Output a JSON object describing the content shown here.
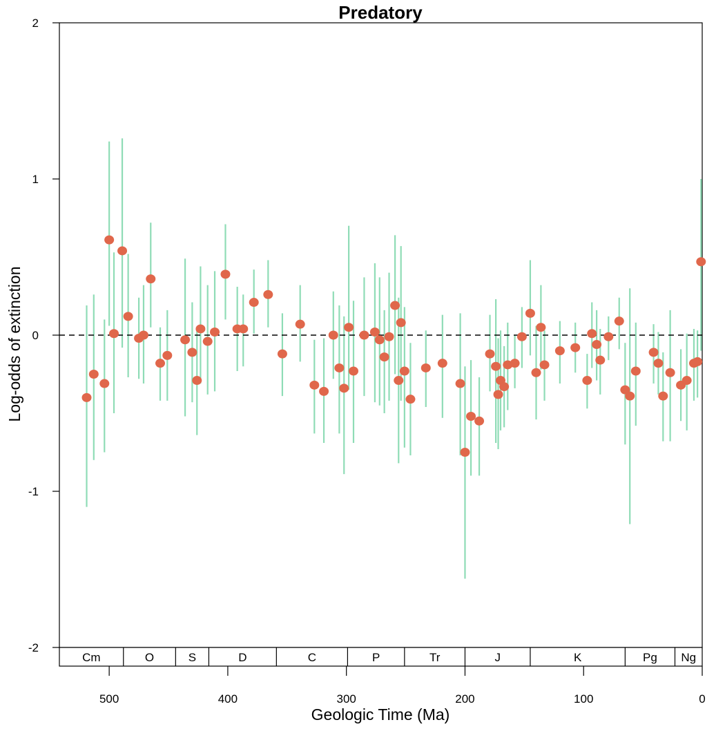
{
  "colors": {
    "point": "#e0674b",
    "errorbar": "#8fdcb6",
    "axis": "#000000",
    "zero_line": "#000000"
  },
  "chart_data": {
    "type": "scatter",
    "title": "Predatory",
    "xlabel": "Geologic Time (Ma)",
    "ylabel": "Log-odds of extinction",
    "xlim": [
      542,
      0
    ],
    "ylim": [
      -2,
      2
    ],
    "x_reversed": true,
    "x_ticks": [
      500,
      400,
      300,
      200,
      100,
      0
    ],
    "y_ticks": [
      -2,
      -1,
      0,
      1,
      2
    ],
    "reference_line": {
      "y": 0,
      "style": "dashed"
    },
    "periods": [
      {
        "label": "Cm",
        "start": 542,
        "end": 488
      },
      {
        "label": "O",
        "start": 488,
        "end": 444
      },
      {
        "label": "S",
        "start": 444,
        "end": 416
      },
      {
        "label": "D",
        "start": 416,
        "end": 359
      },
      {
        "label": "C",
        "start": 359,
        "end": 299
      },
      {
        "label": "P",
        "start": 299,
        "end": 251
      },
      {
        "label": "Tr",
        "start": 251,
        "end": 200
      },
      {
        "label": "J",
        "start": 200,
        "end": 145
      },
      {
        "label": "K",
        "start": 145,
        "end": 65
      },
      {
        "label": "Pg",
        "start": 65,
        "end": 23
      },
      {
        "label": "Ng",
        "start": 23,
        "end": 0
      }
    ],
    "points": [
      {
        "x": 519,
        "y": -0.4,
        "lo": -1.1,
        "hi": 0.19
      },
      {
        "x": 513,
        "y": -0.25,
        "lo": -0.8,
        "hi": 0.26
      },
      {
        "x": 504,
        "y": -0.31,
        "lo": -0.75,
        "hi": 0.1
      },
      {
        "x": 500,
        "y": 0.61,
        "lo": 0.06,
        "hi": 1.24
      },
      {
        "x": 496,
        "y": 0.01,
        "lo": -0.5,
        "hi": 0.53
      },
      {
        "x": 489,
        "y": 0.54,
        "lo": -0.08,
        "hi": 1.26
      },
      {
        "x": 484,
        "y": 0.12,
        "lo": -0.27,
        "hi": 0.52
      },
      {
        "x": 475,
        "y": -0.02,
        "lo": -0.28,
        "hi": 0.24
      },
      {
        "x": 471,
        "y": 0.0,
        "lo": -0.31,
        "hi": 0.32
      },
      {
        "x": 465,
        "y": 0.36,
        "lo": 0.05,
        "hi": 0.72
      },
      {
        "x": 457,
        "y": -0.18,
        "lo": -0.42,
        "hi": 0.05
      },
      {
        "x": 451,
        "y": -0.13,
        "lo": -0.42,
        "hi": 0.16
      },
      {
        "x": 436,
        "y": -0.03,
        "lo": -0.52,
        "hi": 0.49
      },
      {
        "x": 430,
        "y": -0.11,
        "lo": -0.43,
        "hi": 0.21
      },
      {
        "x": 426,
        "y": -0.29,
        "lo": -0.64,
        "hi": 0.04
      },
      {
        "x": 423,
        "y": 0.04,
        "lo": -0.31,
        "hi": 0.44
      },
      {
        "x": 417,
        "y": -0.04,
        "lo": -0.38,
        "hi": 0.32
      },
      {
        "x": 411,
        "y": 0.02,
        "lo": -0.36,
        "hi": 0.41
      },
      {
        "x": 402,
        "y": 0.39,
        "lo": 0.1,
        "hi": 0.71
      },
      {
        "x": 392,
        "y": 0.04,
        "lo": -0.23,
        "hi": 0.31
      },
      {
        "x": 387,
        "y": 0.04,
        "lo": -0.2,
        "hi": 0.26
      },
      {
        "x": 378,
        "y": 0.21,
        "lo": 0.01,
        "hi": 0.42
      },
      {
        "x": 366,
        "y": 0.26,
        "lo": 0.05,
        "hi": 0.48
      },
      {
        "x": 354,
        "y": -0.12,
        "lo": -0.39,
        "hi": 0.14
      },
      {
        "x": 339,
        "y": 0.07,
        "lo": -0.17,
        "hi": 0.32
      },
      {
        "x": 327,
        "y": -0.32,
        "lo": -0.63,
        "hi": -0.03
      },
      {
        "x": 319,
        "y": -0.36,
        "lo": -0.69,
        "hi": -0.02
      },
      {
        "x": 311,
        "y": 0.0,
        "lo": -0.28,
        "hi": 0.28
      },
      {
        "x": 306,
        "y": -0.21,
        "lo": -0.63,
        "hi": 0.19
      },
      {
        "x": 302,
        "y": -0.34,
        "lo": -0.89,
        "hi": 0.12
      },
      {
        "x": 298,
        "y": 0.05,
        "lo": -0.35,
        "hi": 0.7
      },
      {
        "x": 294,
        "y": -0.23,
        "lo": -0.69,
        "hi": 0.22
      },
      {
        "x": 285,
        "y": 0.0,
        "lo": -0.39,
        "hi": 0.37
      },
      {
        "x": 276,
        "y": 0.02,
        "lo": -0.43,
        "hi": 0.46
      },
      {
        "x": 272,
        "y": -0.03,
        "lo": -0.45,
        "hi": 0.37
      },
      {
        "x": 268,
        "y": -0.14,
        "lo": -0.5,
        "hi": 0.16
      },
      {
        "x": 264,
        "y": -0.01,
        "lo": -0.42,
        "hi": 0.4
      },
      {
        "x": 259,
        "y": 0.19,
        "lo": -0.25,
        "hi": 0.64
      },
      {
        "x": 256,
        "y": -0.29,
        "lo": -0.82,
        "hi": 0.24
      },
      {
        "x": 254,
        "y": 0.08,
        "lo": -0.42,
        "hi": 0.57
      },
      {
        "x": 251,
        "y": -0.23,
        "lo": -0.72,
        "hi": 0.18
      },
      {
        "x": 246,
        "y": -0.41,
        "lo": -0.77,
        "hi": -0.05
      },
      {
        "x": 233,
        "y": -0.21,
        "lo": -0.46,
        "hi": 0.03
      },
      {
        "x": 219,
        "y": -0.18,
        "lo": -0.53,
        "hi": 0.13
      },
      {
        "x": 204,
        "y": -0.31,
        "lo": -0.77,
        "hi": 0.14
      },
      {
        "x": 200,
        "y": -0.75,
        "lo": -1.56,
        "hi": -0.2
      },
      {
        "x": 195,
        "y": -0.52,
        "lo": -0.9,
        "hi": -0.16
      },
      {
        "x": 188,
        "y": -0.55,
        "lo": -0.9,
        "hi": -0.27
      },
      {
        "x": 179,
        "y": -0.12,
        "lo": -0.36,
        "hi": 0.13
      },
      {
        "x": 174,
        "y": -0.2,
        "lo": -0.69,
        "hi": 0.23
      },
      {
        "x": 172,
        "y": -0.38,
        "lo": -0.73,
        "hi": -0.02
      },
      {
        "x": 170,
        "y": -0.29,
        "lo": -0.61,
        "hi": 0.03
      },
      {
        "x": 167,
        "y": -0.33,
        "lo": -0.59,
        "hi": -0.07
      },
      {
        "x": 164,
        "y": -0.19,
        "lo": -0.48,
        "hi": 0.08
      },
      {
        "x": 158,
        "y": -0.18,
        "lo": -0.34,
        "hi": 0.0
      },
      {
        "x": 152,
        "y": -0.01,
        "lo": -0.21,
        "hi": 0.18
      },
      {
        "x": 145,
        "y": 0.14,
        "lo": -0.13,
        "hi": 0.48
      },
      {
        "x": 140,
        "y": -0.24,
        "lo": -0.54,
        "hi": 0.06
      },
      {
        "x": 136,
        "y": 0.05,
        "lo": -0.22,
        "hi": 0.32
      },
      {
        "x": 133,
        "y": -0.19,
        "lo": -0.42,
        "hi": 0.03
      },
      {
        "x": 120,
        "y": -0.1,
        "lo": -0.31,
        "hi": 0.09
      },
      {
        "x": 107,
        "y": -0.08,
        "lo": -0.24,
        "hi": 0.08
      },
      {
        "x": 97,
        "y": -0.29,
        "lo": -0.47,
        "hi": -0.12
      },
      {
        "x": 93,
        "y": 0.01,
        "lo": -0.21,
        "hi": 0.21
      },
      {
        "x": 89,
        "y": -0.06,
        "lo": -0.29,
        "hi": 0.16
      },
      {
        "x": 86,
        "y": -0.16,
        "lo": -0.38,
        "hi": 0.04
      },
      {
        "x": 79,
        "y": -0.01,
        "lo": -0.16,
        "hi": 0.12
      },
      {
        "x": 70,
        "y": 0.09,
        "lo": -0.09,
        "hi": 0.24
      },
      {
        "x": 65,
        "y": -0.35,
        "lo": -0.7,
        "hi": -0.05
      },
      {
        "x": 61,
        "y": -0.39,
        "lo": -1.21,
        "hi": 0.3
      },
      {
        "x": 56,
        "y": -0.23,
        "lo": -0.58,
        "hi": 0.08
      },
      {
        "x": 41,
        "y": -0.11,
        "lo": -0.31,
        "hi": 0.07
      },
      {
        "x": 37,
        "y": -0.18,
        "lo": -0.38,
        "hi": 0.02
      },
      {
        "x": 33,
        "y": -0.39,
        "lo": -0.68,
        "hi": -0.11
      },
      {
        "x": 27,
        "y": -0.24,
        "lo": -0.68,
        "hi": 0.16
      },
      {
        "x": 18,
        "y": -0.32,
        "lo": -0.55,
        "hi": -0.09
      },
      {
        "x": 13,
        "y": -0.29,
        "lo": -0.61,
        "hi": 0.01
      },
      {
        "x": 7,
        "y": -0.18,
        "lo": -0.42,
        "hi": 0.04
      },
      {
        "x": 4,
        "y": -0.17,
        "lo": -0.4,
        "hi": 0.03
      },
      {
        "x": 1,
        "y": 0.47,
        "lo": -0.1,
        "hi": 1.0
      }
    ]
  }
}
